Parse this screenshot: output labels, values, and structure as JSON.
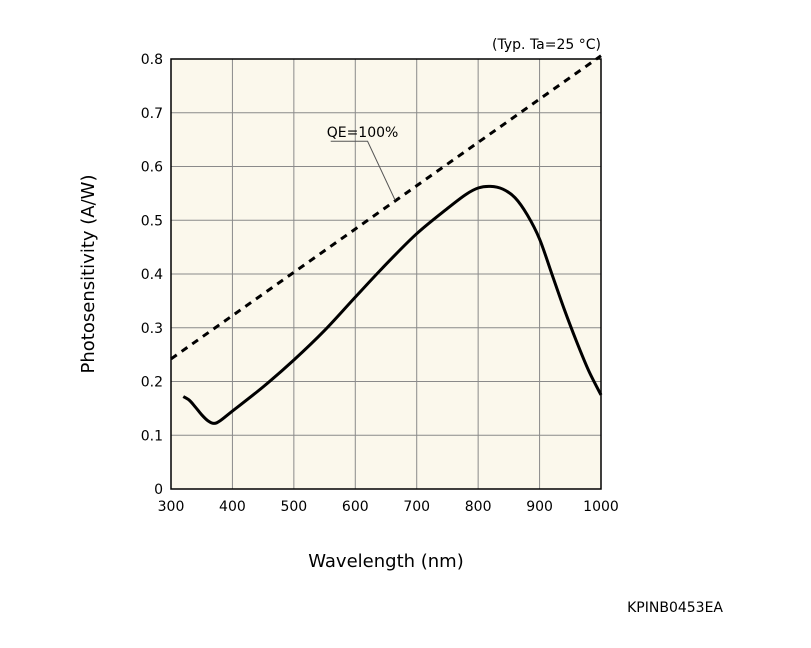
{
  "chart_data": {
    "type": "line",
    "title": "",
    "xlabel": "Wavelength (nm)",
    "ylabel": "Photosensitivity (A/W)",
    "condition_note": "(Typ. Ta=25 °C)",
    "xlim": [
      300,
      1000
    ],
    "ylim": [
      0,
      0.8
    ],
    "x_ticks": [
      300,
      400,
      500,
      600,
      700,
      800,
      900,
      1000
    ],
    "x_tick_labels": [
      "300",
      "400",
      "500",
      "600",
      "700",
      "800",
      "900",
      "1000"
    ],
    "y_ticks": [
      0,
      0.1,
      0.2,
      0.3,
      0.4,
      0.5,
      0.6,
      0.7,
      0.8
    ],
    "y_tick_labels": [
      "0",
      "0.1",
      "0.2",
      "0.3",
      "0.4",
      "0.5",
      "0.6",
      "0.7",
      "0.8"
    ],
    "grid": true,
    "plot_background": "#fbf8ec",
    "grid_color": "#8a8a8a",
    "series": [
      {
        "name": "",
        "style": "solid",
        "color": "#000000",
        "points": [
          [
            320,
            0.172
          ],
          [
            330,
            0.165
          ],
          [
            340,
            0.152
          ],
          [
            350,
            0.138
          ],
          [
            360,
            0.127
          ],
          [
            370,
            0.122
          ],
          [
            380,
            0.127
          ],
          [
            400,
            0.145
          ],
          [
            450,
            0.19
          ],
          [
            500,
            0.24
          ],
          [
            550,
            0.295
          ],
          [
            600,
            0.357
          ],
          [
            650,
            0.418
          ],
          [
            700,
            0.475
          ],
          [
            750,
            0.522
          ],
          [
            780,
            0.548
          ],
          [
            800,
            0.56
          ],
          [
            820,
            0.563
          ],
          [
            840,
            0.558
          ],
          [
            860,
            0.542
          ],
          [
            880,
            0.51
          ],
          [
            900,
            0.465
          ],
          [
            920,
            0.4
          ],
          [
            940,
            0.335
          ],
          [
            960,
            0.275
          ],
          [
            980,
            0.22
          ],
          [
            1000,
            0.175
          ]
        ]
      },
      {
        "name": "QE=100%",
        "style": "dashed",
        "color": "#000000",
        "points": [
          [
            300,
            0.242
          ],
          [
            1000,
            0.806
          ]
        ]
      }
    ],
    "annotations": [
      {
        "text": "QE=100%",
        "target": [
          665,
          0.537
        ]
      }
    ],
    "figure_code": "KPINB0453EA"
  }
}
